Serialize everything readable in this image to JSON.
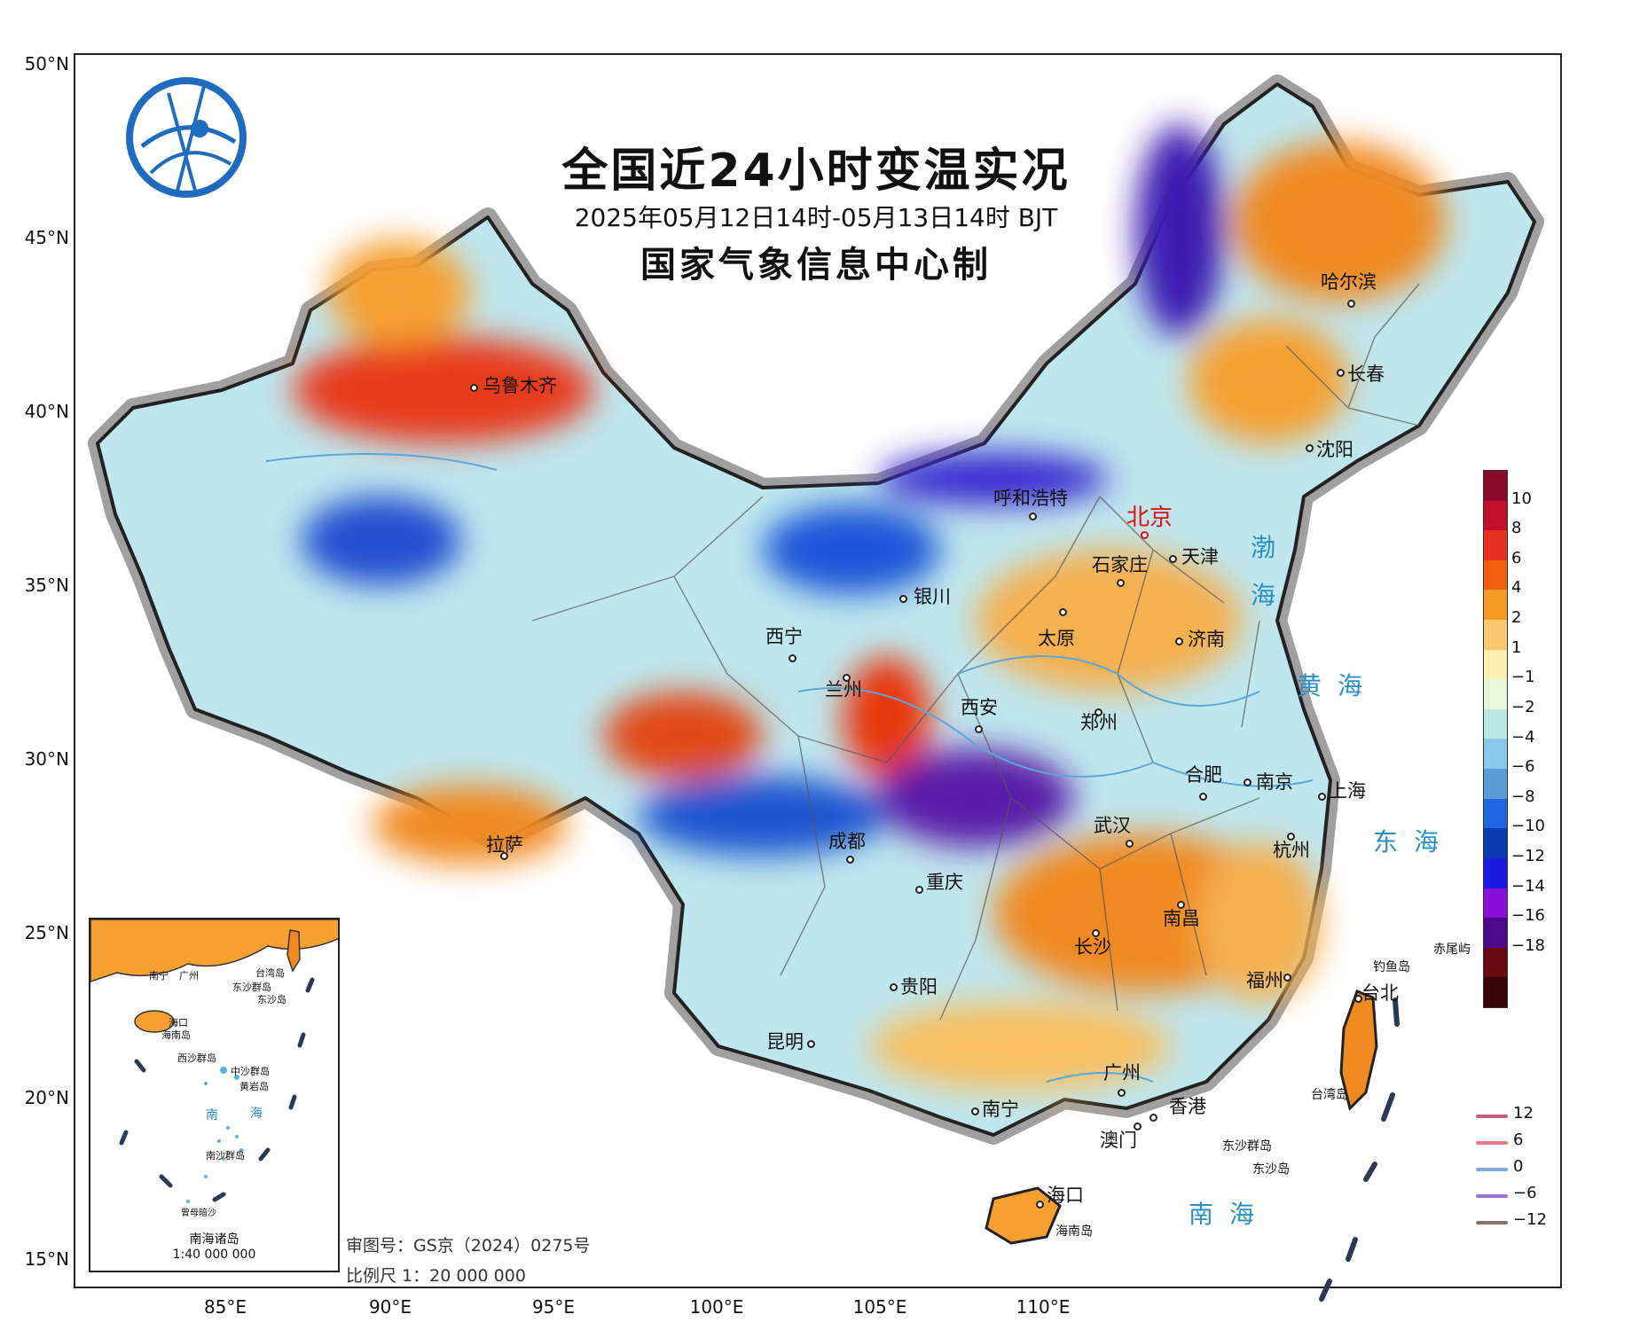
{
  "title": "全国近24小时变温实况",
  "subtitle": "2025年05月12日14时-05月13日14时 BJT",
  "maker": "国家气象信息中心制",
  "lat_labels": [
    "50°N",
    "45°N",
    "40°N",
    "35°N",
    "30°N",
    "25°N",
    "20°N",
    "15°N"
  ],
  "lon_labels": [
    "85°E",
    "90°E",
    "95°E",
    "100°E",
    "105°E",
    "110°E"
  ],
  "cities": [
    {
      "name": "乌鲁木齐"
    },
    {
      "name": "哈尔滨"
    },
    {
      "name": "长春"
    },
    {
      "name": "沈阳"
    },
    {
      "name": "呼和浩特"
    },
    {
      "name": "北京"
    },
    {
      "name": "天津"
    },
    {
      "name": "石家庄"
    },
    {
      "name": "银川"
    },
    {
      "name": "太原"
    },
    {
      "name": "济南"
    },
    {
      "name": "西宁"
    },
    {
      "name": "兰州"
    },
    {
      "name": "西安"
    },
    {
      "name": "郑州"
    },
    {
      "name": "合肥"
    },
    {
      "name": "南京"
    },
    {
      "name": "上海"
    },
    {
      "name": "拉萨"
    },
    {
      "name": "成都"
    },
    {
      "name": "武汉"
    },
    {
      "name": "杭州"
    },
    {
      "name": "重庆"
    },
    {
      "name": "长沙"
    },
    {
      "name": "南昌"
    },
    {
      "name": "贵阳"
    },
    {
      "name": "福州"
    },
    {
      "name": "台北"
    },
    {
      "name": "昆明"
    },
    {
      "name": "广州"
    },
    {
      "name": "南宁"
    },
    {
      "name": "香港"
    },
    {
      "name": "澳门"
    },
    {
      "name": "海口"
    }
  ],
  "seas": {
    "bohai_1": "渤",
    "bohai_2": "海",
    "huanghai": "黄海",
    "donghai": "东海",
    "nanhai": "南海"
  },
  "features": {
    "chiweiyu": "赤尾屿",
    "diaoyudao": "钓鱼岛",
    "taiwandao": "台湾岛",
    "dongsha": "东沙群岛",
    "dongshadao": "东沙岛",
    "hainandao": "海南岛"
  },
  "inset": {
    "title": "南海诸岛",
    "scale": "1:40 000 000",
    "labels": [
      "南宁",
      "广州",
      "台湾岛",
      "东沙群岛",
      "东沙岛",
      "海口",
      "海南岛",
      "西沙群岛",
      "中沙群岛",
      "黄岩岛",
      "南",
      "海",
      "南沙群岛",
      "曾母暗沙"
    ]
  },
  "footer": {
    "review": "审图号：GS京（2024）0275号",
    "scale": "比例尺 1：20 000 000"
  },
  "legend": {
    "labels": [
      "10",
      "8",
      "6",
      "4",
      "2",
      "1",
      "−1",
      "−2",
      "−4",
      "−6",
      "−8",
      "−10",
      "−12",
      "−14",
      "−16",
      "−18"
    ],
    "colors": [
      "#8b0a2a",
      "#c4102e",
      "#e83020",
      "#f06010",
      "#f59a22",
      "#f8c870",
      "#fcefb0",
      "#e8f6d8",
      "#b8e8e0",
      "#88c8ea",
      "#5a9cd8",
      "#1e66e0",
      "#0a3cb0",
      "#1a1ae0",
      "#8a10d8",
      "#4a0a8a",
      "#6a0a10",
      "#3a0508"
    ]
  },
  "isolines": [
    {
      "label": "12",
      "color": "#c0607a"
    },
    {
      "label": "6",
      "color": "#e87a8a"
    },
    {
      "label": "0",
      "color": "#7aaae8"
    },
    {
      "label": "−6",
      "color": "#a070d0"
    },
    {
      "label": "−12",
      "color": "#8a7070"
    }
  ]
}
